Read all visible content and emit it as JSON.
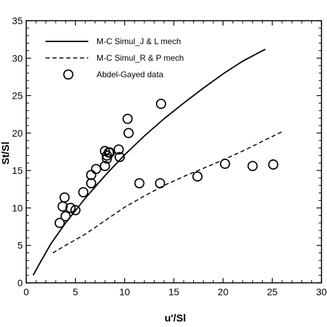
{
  "chart_data": {
    "type": "scatter",
    "title": "",
    "xlabel": "u'/Sl",
    "ylabel": "St/Sl",
    "xlim": [
      0,
      30
    ],
    "ylim": [
      0,
      35
    ],
    "xticks": [
      "0",
      "5",
      "10",
      "15",
      "20",
      "25",
      "30"
    ],
    "yticks": [
      "0",
      "5",
      "10",
      "15",
      "20",
      "25",
      "30",
      "35"
    ],
    "grid": false,
    "legend_position": "top-left",
    "series": [
      {
        "name": "M-C Simul_J & L mech",
        "style": "solid-line",
        "color": "#000000",
        "x": [
          0.7,
          1.5,
          2.5,
          4,
          6,
          8,
          10,
          12,
          14,
          16,
          18,
          20,
          22,
          24.3
        ],
        "y": [
          1.0,
          2.9,
          5.2,
          8.0,
          11.3,
          14.3,
          17.1,
          19.6,
          21.9,
          24.0,
          26.0,
          27.9,
          29.6,
          31.2
        ]
      },
      {
        "name": "M-C Simul_R & P mech",
        "style": "dashed-line",
        "color": "#000000",
        "x": [
          2.7,
          4,
          6,
          8,
          10,
          12,
          14,
          16,
          18,
          20,
          22,
          24,
          26.2
        ],
        "y": [
          4.0,
          5.0,
          6.5,
          8.3,
          10.1,
          11.6,
          13.0,
          14.2,
          15.3,
          16.4,
          17.6,
          18.9,
          20.3
        ]
      },
      {
        "name": "Abdel-Gayed data",
        "style": "open-circle",
        "color": "#000000",
        "x": [
          3.4,
          3.7,
          3.9,
          4.0,
          4.5,
          5.0,
          5.8,
          6.6,
          6.6,
          7.1,
          8.0,
          8.0,
          8.2,
          8.2,
          8.4,
          8.5,
          9.4,
          9.5,
          10.3,
          10.4,
          11.5,
          13.6,
          13.7,
          17.4,
          20.2,
          23.0,
          25.1
        ],
        "y": [
          8.0,
          10.2,
          11.4,
          8.9,
          10.0,
          9.7,
          12.1,
          13.3,
          14.4,
          15.2,
          15.6,
          17.6,
          16.6,
          17.0,
          17.4,
          17.4,
          17.8,
          16.8,
          21.9,
          20.0,
          13.3,
          13.3,
          23.9,
          14.2,
          15.9,
          15.6,
          15.8
        ]
      }
    ]
  }
}
